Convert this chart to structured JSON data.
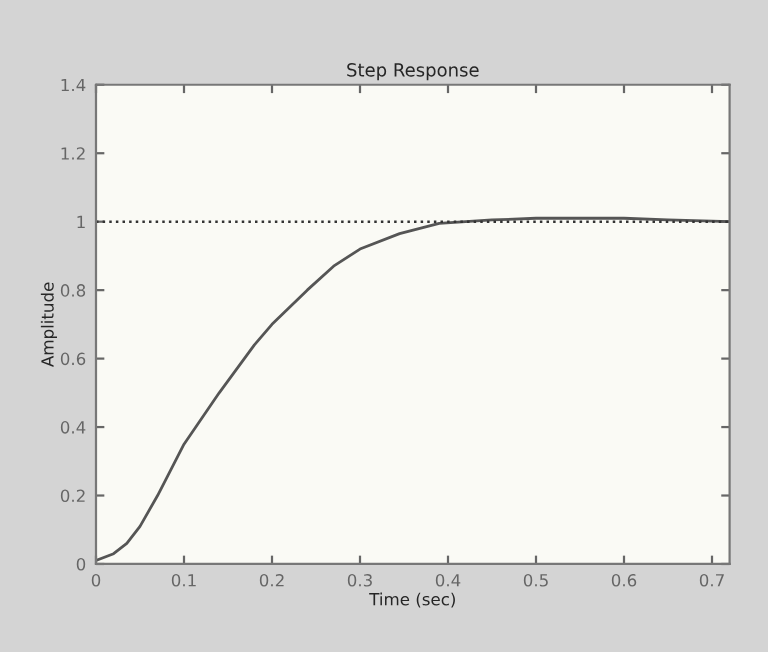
{
  "chart_data": {
    "type": "line",
    "title": "Step Response",
    "xlabel": "Time (sec)",
    "ylabel": "Amplitude",
    "x": [
      0,
      0.02,
      0.035,
      0.05,
      0.07,
      0.1,
      0.14,
      0.18,
      0.2,
      0.24,
      0.27,
      0.3,
      0.345,
      0.39,
      0.45,
      0.5,
      0.6,
      0.65,
      0.72
    ],
    "series": [
      {
        "color": "#555555",
        "values": [
          0.01,
          0.03,
          0.06,
          0.11,
          0.2,
          0.35,
          0.5,
          0.64,
          0.7,
          0.8,
          0.87,
          0.92,
          0.965,
          0.995,
          1.005,
          1.01,
          1.01,
          1.005,
          1.0
        ]
      }
    ],
    "xlim": [
      0,
      0.72
    ],
    "xticks": [
      0,
      0.1,
      0.2,
      0.3,
      0.4,
      0.5,
      0.6,
      0.7
    ],
    "ylim": [
      0,
      1.4
    ],
    "yticks": [
      0,
      0.2,
      0.4,
      0.6,
      0.8,
      1,
      1.2,
      1.4
    ],
    "ref_lines": [
      {
        "axis": "y",
        "value": 1,
        "color": "#333333",
        "line_style": "dotted"
      }
    ],
    "grid": false,
    "line_style": "solid",
    "marker": "none"
  }
}
